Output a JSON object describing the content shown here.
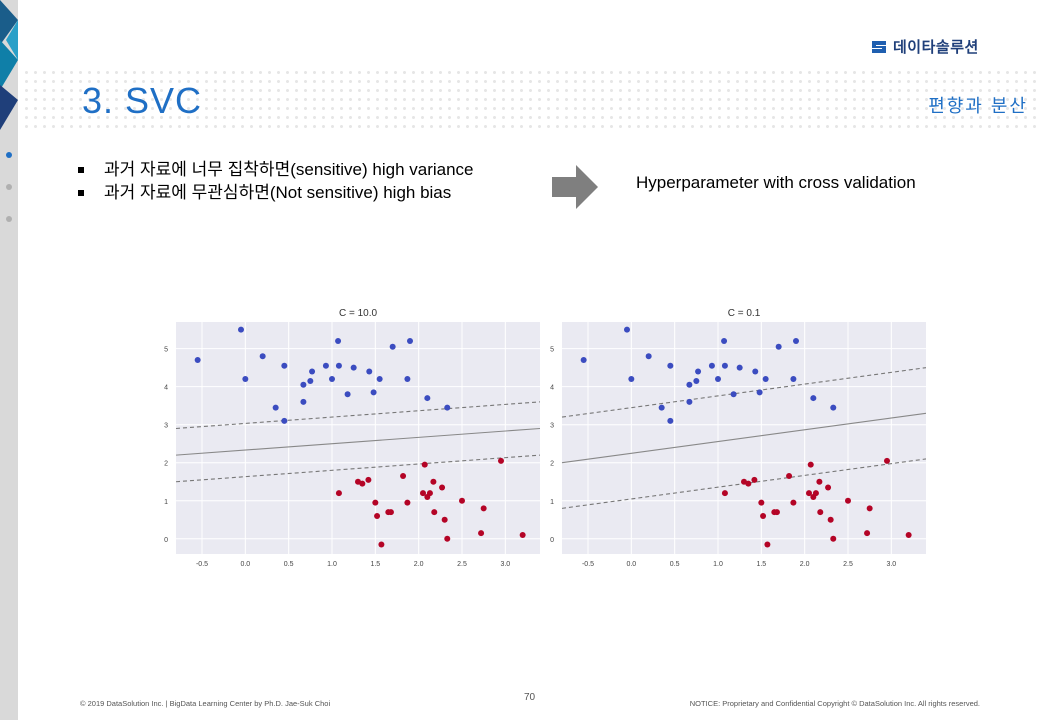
{
  "brand": {
    "logo_text": "데이타솔루션"
  },
  "header": {
    "title": "3. SVC",
    "subtitle": "편향과 분산"
  },
  "content": {
    "bullets": [
      "과거 자료에 너무 집착하면(sensitive) high variance",
      "과거 자료에 무관심하면(Not sensitive) high bias"
    ],
    "arrow_icon": "right-arrow-icon",
    "right_text": "Hyperparameter with cross validation"
  },
  "colors": {
    "accent": "#1f6fc5",
    "blue_class": "#3b4cc0",
    "red_class": "#b40426",
    "plot_bg": "#eaeaf2"
  },
  "chart_data": [
    {
      "type": "scatter",
      "title": "C = 10.0",
      "xlim": [
        -0.8,
        3.4
      ],
      "ylim": [
        -0.4,
        5.7
      ],
      "xticks": [
        -0.5,
        0.0,
        0.5,
        1.0,
        1.5,
        2.0,
        2.5,
        3.0
      ],
      "xtick_labels": [
        "-0.5",
        "0.0",
        "0.5",
        "1.0",
        "1.5",
        "2.0",
        "2.5",
        "3.0"
      ],
      "yticks": [
        0,
        1,
        2,
        3,
        4,
        5
      ],
      "ytick_labels": [
        "0",
        "1",
        "2",
        "3",
        "4",
        "5"
      ],
      "grid": true,
      "boundary": {
        "x": [
          -0.8,
          3.4
        ],
        "y": [
          2.2,
          2.9
        ]
      },
      "margin_upper": {
        "x": [
          -0.8,
          3.4
        ],
        "y": [
          2.9,
          3.6
        ]
      },
      "margin_lower": {
        "x": [
          -0.8,
          3.4
        ],
        "y": [
          1.5,
          2.2
        ]
      },
      "series": [
        {
          "class": "blue",
          "points": [
            [
              -0.55,
              4.7
            ],
            [
              -0.05,
              5.5
            ],
            [
              0.0,
              4.2
            ],
            [
              0.2,
              4.8
            ],
            [
              0.35,
              3.45
            ],
            [
              0.45,
              4.55
            ],
            [
              0.45,
              3.1
            ],
            [
              0.67,
              4.05
            ],
            [
              0.67,
              3.6
            ],
            [
              0.75,
              4.15
            ],
            [
              0.77,
              4.4
            ],
            [
              0.93,
              4.55
            ],
            [
              1.0,
              4.2
            ],
            [
              1.07,
              5.2
            ],
            [
              1.08,
              4.55
            ],
            [
              1.18,
              3.8
            ],
            [
              1.25,
              4.5
            ],
            [
              1.43,
              4.4
            ],
            [
              1.48,
              3.85
            ],
            [
              1.55,
              4.2
            ],
            [
              1.7,
              5.05
            ],
            [
              1.87,
              4.2
            ],
            [
              1.9,
              5.2
            ],
            [
              2.1,
              3.7
            ],
            [
              2.33,
              3.45
            ]
          ]
        },
        {
          "class": "red",
          "points": [
            [
              1.08,
              1.2
            ],
            [
              1.3,
              1.5
            ],
            [
              1.35,
              1.45
            ],
            [
              1.42,
              1.55
            ],
            [
              1.5,
              0.95
            ],
            [
              1.52,
              0.6
            ],
            [
              1.57,
              -0.15
            ],
            [
              1.65,
              0.7
            ],
            [
              1.68,
              0.7
            ],
            [
              1.82,
              1.65
            ],
            [
              1.87,
              0.95
            ],
            [
              2.05,
              1.2
            ],
            [
              2.07,
              1.95
            ],
            [
              2.1,
              1.1
            ],
            [
              2.13,
              1.2
            ],
            [
              2.17,
              1.5
            ],
            [
              2.18,
              0.7
            ],
            [
              2.27,
              1.35
            ],
            [
              2.3,
              0.5
            ],
            [
              2.33,
              0.0
            ],
            [
              2.5,
              1.0
            ],
            [
              2.72,
              0.15
            ],
            [
              2.75,
              0.8
            ],
            [
              2.95,
              2.05
            ],
            [
              3.2,
              0.1
            ]
          ]
        }
      ]
    },
    {
      "type": "scatter",
      "title": "C = 0.1",
      "xlim": [
        -0.8,
        3.4
      ],
      "ylim": [
        -0.4,
        5.7
      ],
      "xticks": [
        -0.5,
        0.0,
        0.5,
        1.0,
        1.5,
        2.0,
        2.5,
        3.0
      ],
      "xtick_labels": [
        "-0.5",
        "0.0",
        "0.5",
        "1.0",
        "1.5",
        "2.0",
        "2.5",
        "3.0"
      ],
      "yticks": [
        0,
        1,
        2,
        3,
        4,
        5
      ],
      "ytick_labels": [
        "0",
        "1",
        "2",
        "3",
        "4",
        "5"
      ],
      "grid": true,
      "boundary": {
        "x": [
          -0.8,
          3.4
        ],
        "y": [
          2.0,
          3.3
        ]
      },
      "margin_upper": {
        "x": [
          -0.8,
          3.4
        ],
        "y": [
          3.2,
          4.5
        ]
      },
      "margin_lower": {
        "x": [
          -0.8,
          3.4
        ],
        "y": [
          0.8,
          2.1
        ]
      },
      "series": [
        {
          "class": "blue",
          "points": [
            [
              -0.55,
              4.7
            ],
            [
              -0.05,
              5.5
            ],
            [
              0.0,
              4.2
            ],
            [
              0.2,
              4.8
            ],
            [
              0.35,
              3.45
            ],
            [
              0.45,
              4.55
            ],
            [
              0.45,
              3.1
            ],
            [
              0.67,
              4.05
            ],
            [
              0.67,
              3.6
            ],
            [
              0.75,
              4.15
            ],
            [
              0.77,
              4.4
            ],
            [
              0.93,
              4.55
            ],
            [
              1.0,
              4.2
            ],
            [
              1.07,
              5.2
            ],
            [
              1.08,
              4.55
            ],
            [
              1.18,
              3.8
            ],
            [
              1.25,
              4.5
            ],
            [
              1.43,
              4.4
            ],
            [
              1.48,
              3.85
            ],
            [
              1.55,
              4.2
            ],
            [
              1.7,
              5.05
            ],
            [
              1.87,
              4.2
            ],
            [
              1.9,
              5.2
            ],
            [
              2.1,
              3.7
            ],
            [
              2.33,
              3.45
            ]
          ]
        },
        {
          "class": "red",
          "points": [
            [
              1.08,
              1.2
            ],
            [
              1.3,
              1.5
            ],
            [
              1.35,
              1.45
            ],
            [
              1.42,
              1.55
            ],
            [
              1.5,
              0.95
            ],
            [
              1.52,
              0.6
            ],
            [
              1.57,
              -0.15
            ],
            [
              1.65,
              0.7
            ],
            [
              1.68,
              0.7
            ],
            [
              1.82,
              1.65
            ],
            [
              1.87,
              0.95
            ],
            [
              2.05,
              1.2
            ],
            [
              2.07,
              1.95
            ],
            [
              2.1,
              1.1
            ],
            [
              2.13,
              1.2
            ],
            [
              2.17,
              1.5
            ],
            [
              2.18,
              0.7
            ],
            [
              2.27,
              1.35
            ],
            [
              2.3,
              0.5
            ],
            [
              2.33,
              0.0
            ],
            [
              2.5,
              1.0
            ],
            [
              2.72,
              0.15
            ],
            [
              2.75,
              0.8
            ],
            [
              2.95,
              2.05
            ],
            [
              3.2,
              0.1
            ]
          ]
        }
      ]
    }
  ],
  "footer": {
    "left": "© 2019 DataSolution Inc. | BigData Learning Center by Ph.D. Jae-Suk Choi",
    "page": "70",
    "right": "NOTICE: Proprietary and Confidential Copyright © DataSolution Inc. All rights reserved."
  }
}
